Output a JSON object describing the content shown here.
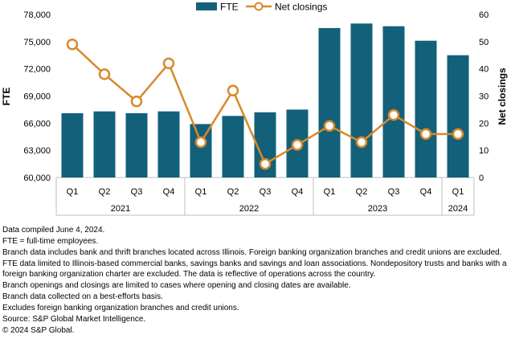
{
  "chart_data": {
    "type": "bar",
    "categories": [
      "Q1",
      "Q2",
      "Q3",
      "Q4",
      "Q1",
      "Q2",
      "Q3",
      "Q4",
      "Q1",
      "Q2",
      "Q3",
      "Q4",
      "Q1"
    ],
    "groups": [
      {
        "label": "2021",
        "count": 4
      },
      {
        "label": "2022",
        "count": 4
      },
      {
        "label": "2023",
        "count": 4
      },
      {
        "label": "2024",
        "count": 1
      }
    ],
    "series": [
      {
        "name": "FTE",
        "kind": "bar",
        "axis": "left",
        "color": "#13607a",
        "values": [
          67100,
          67300,
          67100,
          67300,
          65900,
          66800,
          67200,
          67500,
          76500,
          77000,
          76700,
          75100,
          73500
        ]
      },
      {
        "name": "Net closings",
        "kind": "line",
        "axis": "right",
        "color": "#d8892b",
        "values": [
          49,
          38,
          28,
          42,
          13,
          32,
          5,
          12,
          19,
          13,
          23,
          16,
          16
        ]
      }
    ],
    "yleft": {
      "label": "FTE",
      "ylim": [
        60000,
        78000
      ],
      "ticks": [
        "60,000",
        "63,000",
        "66,000",
        "69,000",
        "72,000",
        "75,000",
        "78,000"
      ]
    },
    "yright": {
      "label": "Net closings",
      "ylim": [
        0,
        60
      ],
      "ticks": [
        "0",
        "10",
        "20",
        "30",
        "40",
        "50",
        "60"
      ]
    },
    "legend": {
      "position": "top-center"
    }
  },
  "notes": [
    "Data compiled June 4, 2024.",
    "FTE = full-time employees.",
    "Branch data includes bank and thrift branches located across Illinois. Foreign banking organization branches and credit unions are excluded.",
    "FTE data limited to Illinois-based commercial banks, savings banks and savings and loan associations. Nondepository trusts and banks with a foreign banking organization charter are excluded. The data is reflective of operations across the country.",
    "Branch openings and closings are limited to cases where opening and closing dates are available.",
    "Branch data collected on a best-efforts basis.",
    "Excludes foreign banking organization branches and credit unions.",
    "Source: S&P Global Market Intelligence.",
    "© 2024 S&P Global."
  ]
}
